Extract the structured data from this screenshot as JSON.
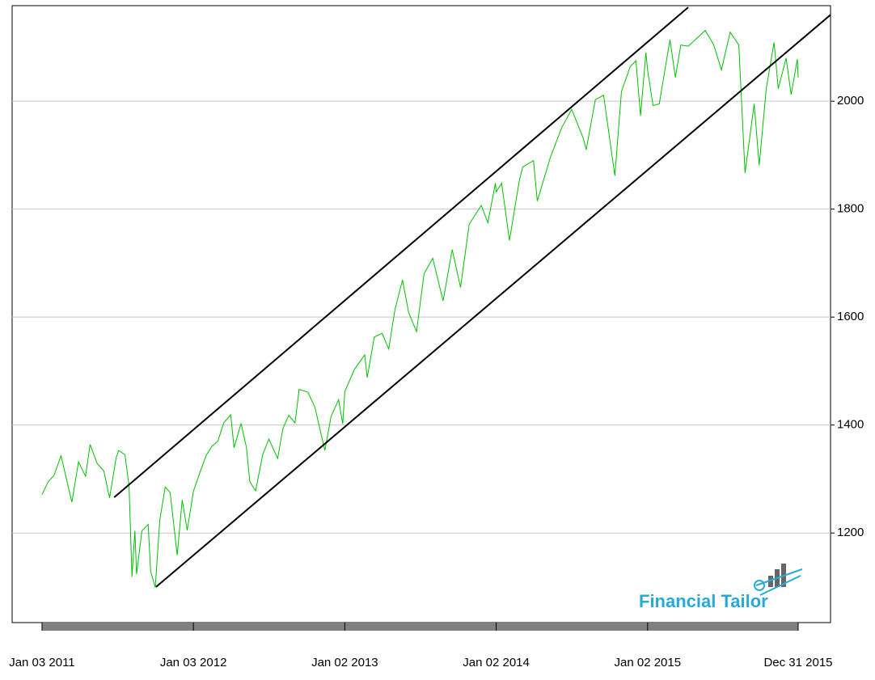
{
  "chart_data": {
    "type": "line",
    "x": [
      "2011-01-03",
      "2011-01-18",
      "2011-02-01",
      "2011-02-18",
      "2011-03-01",
      "2011-03-16",
      "2011-04-01",
      "2011-04-18",
      "2011-04-29",
      "2011-05-16",
      "2011-06-01",
      "2011-06-15",
      "2011-07-01",
      "2011-07-07",
      "2011-07-22",
      "2011-08-01",
      "2011-08-08",
      "2011-08-15",
      "2011-08-19",
      "2011-09-01",
      "2011-09-16",
      "2011-09-22",
      "2011-10-03",
      "2011-10-14",
      "2011-10-27",
      "2011-11-08",
      "2011-11-25",
      "2011-12-07",
      "2011-12-19",
      "2011-12-30",
      "2012-01-03",
      "2012-01-20",
      "2012-02-03",
      "2012-02-17",
      "2012-03-02",
      "2012-03-16",
      "2012-04-02",
      "2012-04-10",
      "2012-04-27",
      "2012-05-10",
      "2012-05-18",
      "2012-06-01",
      "2012-06-18",
      "2012-07-03",
      "2012-07-24",
      "2012-08-06",
      "2012-08-20",
      "2012-09-04",
      "2012-09-14",
      "2012-10-05",
      "2012-10-22",
      "2012-11-15",
      "2012-11-30",
      "2012-12-18",
      "2012-12-28",
      "2013-01-02",
      "2013-01-25",
      "2013-02-19",
      "2013-02-25",
      "2013-03-14",
      "2013-04-02",
      "2013-04-18",
      "2013-05-03",
      "2013-05-21",
      "2013-06-05",
      "2013-06-24",
      "2013-07-12",
      "2013-08-02",
      "2013-08-27",
      "2013-09-18",
      "2013-10-08",
      "2013-10-29",
      "2013-11-27",
      "2013-12-13",
      "2013-12-31",
      "2014-01-02",
      "2014-01-15",
      "2014-02-03",
      "2014-02-27",
      "2014-03-07",
      "2014-04-02",
      "2014-04-11",
      "2014-05-13",
      "2014-06-09",
      "2014-07-03",
      "2014-07-31",
      "2014-08-07",
      "2014-08-29",
      "2014-09-18",
      "2014-10-15",
      "2014-10-31",
      "2014-11-21",
      "2014-12-05",
      "2014-12-16",
      "2014-12-29",
      "2015-01-02",
      "2015-01-15",
      "2015-01-30",
      "2015-02-25",
      "2015-03-10",
      "2015-03-23",
      "2015-04-10",
      "2015-05-21",
      "2015-06-10",
      "2015-06-29",
      "2015-07-20",
      "2015-08-10",
      "2015-08-25",
      "2015-09-16",
      "2015-09-28",
      "2015-10-15",
      "2015-11-03",
      "2015-11-13",
      "2015-12-02",
      "2015-12-14",
      "2015-12-29",
      "2015-12-31"
    ],
    "series": [
      {
        "color": "#00c000",
        "values": [
          1271,
          1295,
          1307,
          1343,
          1306,
          1257,
          1332,
          1305,
          1364,
          1329,
          1315,
          1265,
          1340,
          1353,
          1345,
          1287,
          1119,
          1204,
          1124,
          1204,
          1216,
          1129,
          1099,
          1224,
          1285,
          1275,
          1159,
          1261,
          1205,
          1258,
          1277,
          1315,
          1344,
          1361,
          1370,
          1404,
          1419,
          1358,
          1403,
          1358,
          1295,
          1278,
          1345,
          1374,
          1338,
          1394,
          1418,
          1404,
          1466,
          1461,
          1433,
          1353,
          1416,
          1447,
          1402,
          1462,
          1503,
          1530,
          1488,
          1563,
          1570,
          1541,
          1614,
          1669,
          1608,
          1573,
          1680,
          1709,
          1630,
          1725,
          1655,
          1772,
          1807,
          1775,
          1848,
          1832,
          1848,
          1742,
          1854,
          1878,
          1890,
          1815,
          1897,
          1951,
          1985,
          1931,
          1910,
          2003,
          2011,
          1862,
          2018,
          2064,
          2075,
          1973,
          2090,
          2058,
          1992,
          1995,
          2114,
          2044,
          2104,
          2102,
          2131,
          2105,
          2058,
          2128,
          2104,
          1867,
          1995,
          1881,
          2023,
          2109,
          2023,
          2080,
          2012,
          2078,
          2044
        ]
      }
    ],
    "channels": [
      {
        "color": "#000000",
        "x": [
          "2011-06-26",
          "2015-04-10"
        ],
        "values": [
          1266,
          2174
        ]
      },
      {
        "color": "#000000",
        "x": [
          "2011-10-05",
          "2016-03-18"
        ],
        "values": [
          1100,
          2160
        ]
      }
    ],
    "xlim": [
      "2010-10-23",
      "2016-03-18"
    ],
    "ylim": [
      1034,
      2177
    ],
    "xticks": [
      {
        "value": "2011-01-03",
        "label": "Jan 03 2011"
      },
      {
        "value": "2012-01-03",
        "label": "Jan 03 2012"
      },
      {
        "value": "2013-01-02",
        "label": "Jan 02 2013"
      },
      {
        "value": "2014-01-02",
        "label": "Jan 02 2014"
      },
      {
        "value": "2015-01-02",
        "label": "Jan 02 2015"
      },
      {
        "value": "2015-12-31",
        "label": "Dec 31 2015"
      }
    ],
    "yticks": [
      1200,
      1400,
      1600,
      1800,
      2000
    ],
    "grid": true,
    "logo_text": "Financial Tailor"
  }
}
